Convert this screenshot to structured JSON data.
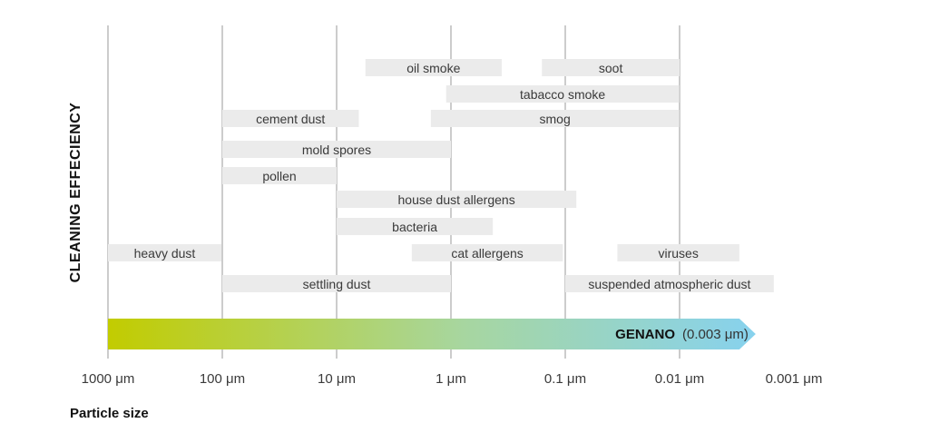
{
  "chart_data": {
    "type": "range-bar",
    "ylabel": "CLEANING EFFECIENCY",
    "xlabel": "Particle size",
    "x_scale": "log",
    "x_direction": "decreasing",
    "x_ticks": [
      {
        "value": 1000,
        "label": "1000 μm"
      },
      {
        "value": 100,
        "label": "100 μm"
      },
      {
        "value": 10,
        "label": "10 μm"
      },
      {
        "value": 1,
        "label": "1 μm"
      },
      {
        "value": 0.1,
        "label": "0.1 μm"
      },
      {
        "value": 0.01,
        "label": "0.01 μm"
      },
      {
        "value": 0.001,
        "label": "0.001 μm"
      }
    ],
    "grid": "vertical",
    "ranges": [
      {
        "label": "oil smoke",
        "from_um": 5.6,
        "to_um": 0.36,
        "row": 0
      },
      {
        "label": "soot",
        "from_um": 0.16,
        "to_um": 0.01,
        "row": 0
      },
      {
        "label": "tabacco smoke",
        "from_um": 1.1,
        "to_um": 0.0101,
        "row": 1
      },
      {
        "label": "cement dust",
        "from_um": 100,
        "to_um": 6.4,
        "row": 2
      },
      {
        "label": "smog",
        "from_um": 1.5,
        "to_um": 0.0101,
        "row": 2
      },
      {
        "label": "mold spores",
        "from_um": 100,
        "to_um": 1,
        "row": 3
      },
      {
        "label": "pollen",
        "from_um": 100,
        "to_um": 10,
        "row": 4
      },
      {
        "label": "house dust allergens",
        "from_um": 10,
        "to_um": 0.08,
        "row": 5
      },
      {
        "label": "bacteria",
        "from_um": 10,
        "to_um": 0.43,
        "row": 6
      },
      {
        "label": "heavy dust",
        "from_um": 1000,
        "to_um": 102,
        "row": 7
      },
      {
        "label": "cat allergens",
        "from_um": 2.2,
        "to_um": 0.105,
        "row": 7
      },
      {
        "label": "viruses",
        "from_um": 0.035,
        "to_um": 0.003,
        "row": 7
      },
      {
        "label": "settling dust",
        "from_um": 100,
        "to_um": 1,
        "row": 8
      },
      {
        "label": "suspended atmospheric dust",
        "from_um": 0.1,
        "to_um": 0.0015,
        "row": 8
      }
    ],
    "arrow": {
      "from_um": 1000,
      "to_um": 0.003,
      "label": "GENANO",
      "value_text": "(0.003 μm)",
      "color_start": "#c2cc00",
      "color_mid": "#a7d6a0",
      "color_end": "#87d2ee"
    },
    "colors": {
      "bar_fill": "#ebebeb",
      "grid": "#cccccc"
    }
  }
}
